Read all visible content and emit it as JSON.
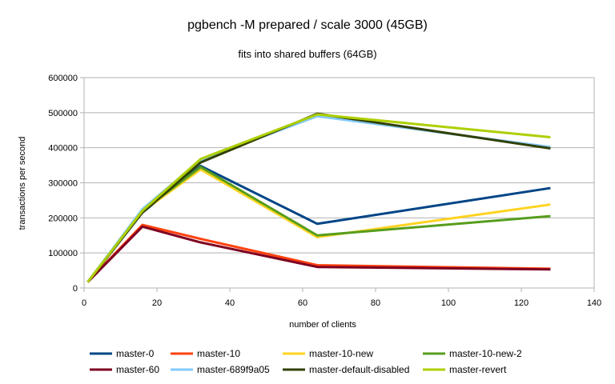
{
  "chart_data": {
    "type": "line",
    "title": "pgbench -M prepared / scale 3000 (45GB)",
    "subtitle": "fits into shared buffers (64GB)",
    "xlabel": "number of clients",
    "ylabel": "transactions per second",
    "xlim": [
      0,
      140
    ],
    "ylim": [
      0,
      600000
    ],
    "x_ticks": [
      0,
      20,
      40,
      60,
      80,
      100,
      120,
      140
    ],
    "y_ticks": [
      0,
      100000,
      200000,
      300000,
      400000,
      500000,
      600000
    ],
    "grid": "horizontal",
    "legend_position": "bottom",
    "x": [
      1,
      16,
      32,
      64,
      128
    ],
    "series": [
      {
        "name": "master-0",
        "color": "#004586",
        "values": [
          17000,
          215000,
          348000,
          183000,
          285000
        ]
      },
      {
        "name": "master-10",
        "color": "#ff420e",
        "values": [
          17000,
          180000,
          140000,
          65000,
          55000
        ]
      },
      {
        "name": "master-10-new",
        "color": "#ffd320",
        "values": [
          17000,
          218000,
          338000,
          145000,
          238000
        ]
      },
      {
        "name": "master-10-new-2",
        "color": "#579d1c",
        "values": [
          17000,
          220000,
          345000,
          150000,
          205000
        ]
      },
      {
        "name": "master-60",
        "color": "#7e0021",
        "values": [
          17000,
          175000,
          130000,
          60000,
          53000
        ]
      },
      {
        "name": "master-689f9a05",
        "color": "#83caff",
        "values": [
          17000,
          225000,
          365000,
          490000,
          402000
        ]
      },
      {
        "name": "master-default-disabled",
        "color": "#314004",
        "values": [
          17000,
          215000,
          358000,
          497000,
          398000
        ]
      },
      {
        "name": "master-revert",
        "color": "#aecf00",
        "values": [
          17000,
          220000,
          368000,
          495000,
          430000
        ]
      }
    ]
  }
}
